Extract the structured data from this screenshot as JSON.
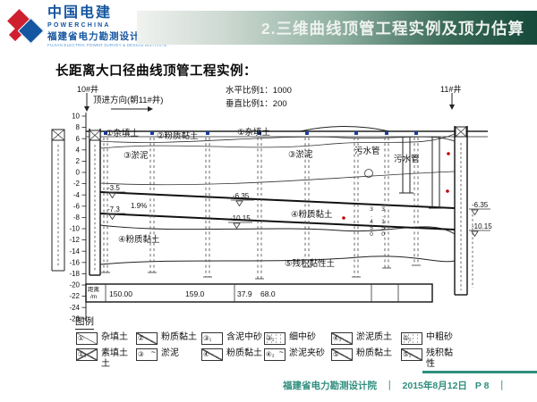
{
  "header": {
    "logo_cn": "中国电建",
    "logo_en": "POWERCHINA",
    "logo_org": "福建省电力勘测设计院",
    "logo_org_en": "FUJIAN ELECTRIC POWER SURVEY & DESIGN INSTITUTE",
    "title": "2.三维曲线顶管工程实例及顶力估算"
  },
  "subtitle": "长距离大口径曲线顶管工程实例：",
  "annotations": {
    "left_well": "10#井",
    "direction": "顶进方向(朝11#井)",
    "scale_h": "水平比例1：1000",
    "scale_v": "垂直比例1：200",
    "right_well": "11#井"
  },
  "diagram": {
    "axis_ticks": [
      "10",
      "8",
      "6",
      "4",
      "2",
      "0",
      "-2",
      "-4",
      "-6",
      "-8",
      "-10",
      "-12",
      "-14",
      "-16",
      "-18",
      "-20",
      "-22",
      "-24",
      "-26"
    ],
    "labels": {
      "fill_top": "①杂填土",
      "silty_clay_top": "②粉质黏土",
      "silt_left": "③淤泥",
      "fill_mid": "①杂填土",
      "silt_mid": "③淤泥",
      "silty_clay4_left": "④粉质黏土",
      "silty_clay4_mid": "④粉质黏土",
      "residual": "⑤残积黏性土",
      "sewage1": "污水管",
      "sewage2": "污水管",
      "elev_left_top": "-3.5",
      "elev_left_bottom": "-7.3",
      "slope": "1.9%",
      "elev_mid_top": "-6.35",
      "elev_mid_bottom": "-10.15",
      "elev_right_top": "-6.35",
      "elev_right_bottom": "-10.15",
      "vnum1": "3.450",
      "vnum2": "3.150"
    },
    "table": {
      "unit_line1": "距离",
      "unit_line2": "/m",
      "values": [
        "150.00",
        "159.0",
        "37.9",
        "68.0"
      ]
    }
  },
  "legend": {
    "title": "图例",
    "rows": [
      [
        {
          "glyph": "①",
          "pattern": "tick",
          "label": "杂填土"
        },
        {
          "glyph": "②",
          "pattern": "slash",
          "label": "粉质黏土"
        },
        {
          "glyph": "③₁",
          "pattern": "plain",
          "label": "含泥中砂"
        },
        {
          "glyph": "③₂",
          "pattern": "dots",
          "label": "细中砂"
        },
        {
          "glyph": "④₁",
          "pattern": "slash",
          "label": "淤泥质土"
        },
        {
          "glyph": "⑤₂",
          "pattern": "dots",
          "label": "中粗砂"
        }
      ],
      [
        {
          "glyph": "①₁",
          "pattern": "cross",
          "label": "素填土\n土"
        },
        {
          "glyph": "③",
          "pattern": "wave",
          "label": "淤泥"
        },
        {
          "glyph": "④",
          "pattern": "slash",
          "label": "粉质黏土"
        },
        {
          "glyph": "④₂",
          "pattern": "wave",
          "label": "淤泥夹砂"
        },
        {
          "glyph": "⑤",
          "pattern": "slash",
          "label": "粉质黏土"
        },
        {
          "glyph": "⑤₁",
          "pattern": "slash",
          "label": "残积黏性"
        }
      ]
    ]
  },
  "footer": {
    "org": "福建省电力勘测设计院",
    "sep": "｜",
    "date": "2015年8月12日",
    "page": "P 8"
  },
  "colors": {
    "banner_dark": "#16493a",
    "banner_light": "#f0f2ef",
    "logo_blue": "#1456a0",
    "logo_red": "#cf2030",
    "footer_teal": "#2f8e7e",
    "marker_blue": "#1a3f9e",
    "marker_red": "#c00000"
  }
}
